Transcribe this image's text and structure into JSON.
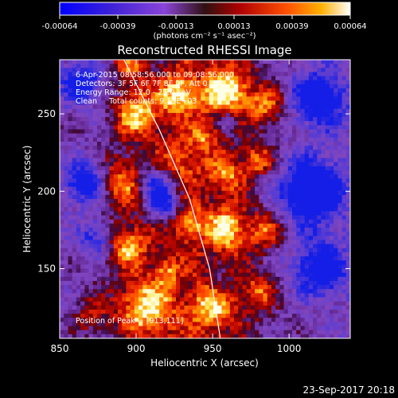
{
  "chart_data": {
    "type": "heatmap",
    "title": "Reconstructed RHESSI Image",
    "xlabel": "Heliocentric X (arcsec)",
    "ylabel": "Heliocentric Y (arcsec)",
    "x_ticks": [
      "850",
      "900",
      "950",
      "1000"
    ],
    "x_tick_values": [
      850,
      900,
      950,
      1000
    ],
    "y_ticks": [
      "150",
      "200",
      "250"
    ],
    "y_tick_values": [
      150,
      200,
      250
    ],
    "xlim": [
      850,
      1040
    ],
    "ylim": [
      105,
      285
    ],
    "colorbar": {
      "ticks": [
        "-0.00064",
        "-0.00039",
        "-0.00013",
        "0.00013",
        "0.00039",
        "0.00064"
      ],
      "range": [
        -0.00064,
        0.00064
      ],
      "unit_label": "(photons cm⁻² s⁻¹ asec⁻²)",
      "colors": [
        "#0000ff",
        "#5c2fd0",
        "#9a4de0",
        "#7a3ea8",
        "#5a0000",
        "#c00000",
        "#ff4000",
        "#ff9900",
        "#ffff80",
        "#ffffff"
      ]
    },
    "annotations": [
      "6-Apr-2015 08:58:56.000 to 09:08:56.000",
      "Detectors: 3F 5F 6F 7F 8F 9F, Att 0",
      "Energy Range: 12.0 - 25.0 keV",
      "Clean     Total counts: 9.13E+03",
      "Position of Peak = [913,111]"
    ],
    "limb_curve": [
      [
        892,
        285
      ],
      [
        915,
        240
      ],
      [
        935,
        195
      ],
      [
        948,
        150
      ],
      [
        955,
        105
      ]
    ]
  },
  "footer": {
    "timestamp": "23-Sep-2017 20:18"
  }
}
